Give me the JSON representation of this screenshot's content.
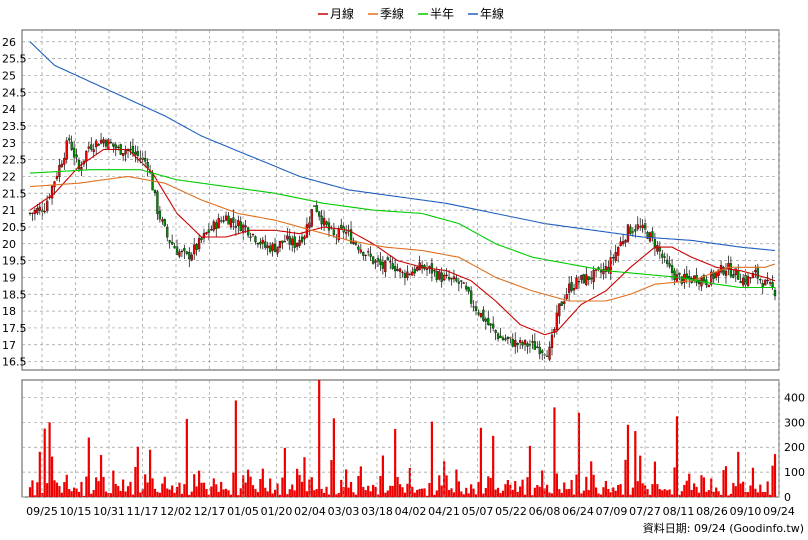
{
  "chart_data": [
    {
      "type": "candlestick",
      "legend": [
        {
          "name": "月線",
          "color": "#cc0000"
        },
        {
          "name": "季線",
          "color": "#e07020"
        },
        {
          "name": "半年",
          "color": "#00cc00"
        },
        {
          "name": "年線",
          "color": "#1f5fbf"
        }
      ],
      "legend_placement": "top-center",
      "y_ticks": [
        "26",
        "25.5",
        "25",
        "24.5",
        "24",
        "23.5",
        "23",
        "22.5",
        "22",
        "21.5",
        "21",
        "20.5",
        "20",
        "19.5",
        "19",
        "18.5",
        "18",
        "17.5",
        "17",
        "16.5"
      ],
      "y_tick_values": [
        26,
        25.5,
        25,
        24.5,
        24,
        23.5,
        23,
        22.5,
        22,
        21.5,
        21,
        20.5,
        20,
        19.5,
        19,
        18.5,
        18,
        17.5,
        17,
        16.5
      ],
      "ylim": [
        16.25,
        26.35
      ],
      "grid": true,
      "x_ticks": [
        "09/25",
        "10/15",
        "10/31",
        "11/17",
        "12/02",
        "12/17",
        "01/05",
        "01/20",
        "02/04",
        "03/03",
        "03/18",
        "04/02",
        "04/21",
        "05/07",
        "05/22",
        "06/08",
        "06/24",
        "07/09",
        "07/27",
        "08/11",
        "08/26",
        "09/10",
        "09/24"
      ],
      "price_path": [
        [
          0,
          20.9
        ],
        [
          6,
          21.1
        ],
        [
          12,
          22.3
        ],
        [
          16,
          23.1
        ],
        [
          20,
          22.2
        ],
        [
          24,
          22.9
        ],
        [
          30,
          23.1
        ],
        [
          36,
          22.8
        ],
        [
          40,
          22.8
        ],
        [
          44,
          22.6
        ],
        [
          48,
          22.4
        ],
        [
          52,
          21.0
        ],
        [
          56,
          20.2
        ],
        [
          60,
          19.8
        ],
        [
          64,
          19.6
        ],
        [
          68,
          19.9
        ],
        [
          72,
          20.3
        ],
        [
          76,
          20.6
        ],
        [
          80,
          20.8
        ],
        [
          84,
          20.6
        ],
        [
          88,
          20.5
        ],
        [
          92,
          20.2
        ],
        [
          96,
          19.9
        ],
        [
          100,
          19.9
        ],
        [
          104,
          20.1
        ],
        [
          108,
          20.0
        ],
        [
          112,
          20.3
        ],
        [
          116,
          21.2
        ],
        [
          120,
          20.6
        ],
        [
          124,
          20.2
        ],
        [
          128,
          20.4
        ],
        [
          132,
          20.1
        ],
        [
          136,
          19.8
        ],
        [
          140,
          19.5
        ],
        [
          144,
          19.3
        ],
        [
          148,
          19.4
        ],
        [
          152,
          19.1
        ],
        [
          156,
          19.2
        ],
        [
          160,
          19.3
        ],
        [
          164,
          19.2
        ],
        [
          168,
          19.0
        ],
        [
          172,
          18.9
        ],
        [
          176,
          18.8
        ],
        [
          180,
          18.3
        ],
        [
          184,
          17.9
        ],
        [
          188,
          17.5
        ],
        [
          192,
          17.2
        ],
        [
          196,
          17.1
        ],
        [
          200,
          17.0
        ],
        [
          204,
          17.0
        ],
        [
          208,
          16.9
        ],
        [
          212,
          16.8
        ],
        [
          216,
          18.1
        ],
        [
          220,
          18.7
        ],
        [
          224,
          18.9
        ],
        [
          228,
          19.0
        ],
        [
          232,
          19.1
        ],
        [
          236,
          19.3
        ],
        [
          240,
          19.9
        ],
        [
          244,
          20.4
        ],
        [
          248,
          20.5
        ],
        [
          252,
          20.3
        ],
        [
          256,
          19.9
        ],
        [
          260,
          19.3
        ],
        [
          264,
          19.0
        ],
        [
          268,
          18.9
        ],
        [
          272,
          19.0
        ],
        [
          276,
          18.9
        ],
        [
          280,
          19.1
        ],
        [
          284,
          19.3
        ],
        [
          288,
          19.1
        ],
        [
          292,
          18.9
        ],
        [
          296,
          19.1
        ],
        [
          300,
          18.8
        ],
        [
          304,
          18.6
        ]
      ],
      "ma": [
        {
          "name": "月線",
          "points": [
            [
              0,
              21.0
            ],
            [
              10,
              21.5
            ],
            [
              20,
              22.3
            ],
            [
              30,
              22.8
            ],
            [
              40,
              22.8
            ],
            [
              50,
              22.1
            ],
            [
              60,
              20.9
            ],
            [
              70,
              20.2
            ],
            [
              80,
              20.2
            ],
            [
              90,
              20.4
            ],
            [
              100,
              20.4
            ],
            [
              110,
              20.3
            ],
            [
              120,
              20.5
            ],
            [
              130,
              20.4
            ],
            [
              140,
              20.0
            ],
            [
              150,
              19.5
            ],
            [
              160,
              19.3
            ],
            [
              170,
              19.2
            ],
            [
              180,
              18.9
            ],
            [
              190,
              18.3
            ],
            [
              200,
              17.6
            ],
            [
              210,
              17.3
            ],
            [
              215,
              17.4
            ],
            [
              225,
              18.2
            ],
            [
              235,
              18.6
            ],
            [
              245,
              19.3
            ],
            [
              255,
              19.9
            ],
            [
              262,
              19.9
            ],
            [
              270,
              19.6
            ],
            [
              280,
              19.3
            ],
            [
              290,
              19.2
            ],
            [
              300,
              19.0
            ],
            [
              304,
              18.9
            ]
          ]
        },
        {
          "name": "季線",
          "points": [
            [
              0,
              21.7
            ],
            [
              20,
              21.8
            ],
            [
              40,
              22.0
            ],
            [
              55,
              21.8
            ],
            [
              70,
              21.3
            ],
            [
              85,
              20.9
            ],
            [
              100,
              20.7
            ],
            [
              115,
              20.4
            ],
            [
              130,
              20.1
            ],
            [
              145,
              19.9
            ],
            [
              160,
              19.8
            ],
            [
              175,
              19.6
            ],
            [
              190,
              19.0
            ],
            [
              205,
              18.6
            ],
            [
              220,
              18.3
            ],
            [
              235,
              18.3
            ],
            [
              245,
              18.5
            ],
            [
              255,
              18.8
            ],
            [
              270,
              18.9
            ],
            [
              285,
              19.3
            ],
            [
              300,
              19.3
            ],
            [
              304,
              19.4
            ]
          ]
        },
        {
          "name": "半年",
          "points": [
            [
              0,
              22.1
            ],
            [
              25,
              22.2
            ],
            [
              45,
              22.2
            ],
            [
              60,
              21.9
            ],
            [
              80,
              21.7
            ],
            [
              100,
              21.5
            ],
            [
              120,
              21.2
            ],
            [
              140,
              21.0
            ],
            [
              160,
              20.9
            ],
            [
              175,
              20.6
            ],
            [
              190,
              20.0
            ],
            [
              205,
              19.6
            ],
            [
              220,
              19.4
            ],
            [
              235,
              19.2
            ],
            [
              250,
              19.1
            ],
            [
              265,
              19.0
            ],
            [
              280,
              18.8
            ],
            [
              290,
              18.7
            ],
            [
              304,
              18.7
            ]
          ]
        },
        {
          "name": "年線",
          "points": [
            [
              0,
              26.0
            ],
            [
              10,
              25.3
            ],
            [
              25,
              24.8
            ],
            [
              40,
              24.3
            ],
            [
              55,
              23.8
            ],
            [
              70,
              23.2
            ],
            [
              90,
              22.6
            ],
            [
              110,
              22.0
            ],
            [
              130,
              21.6
            ],
            [
              150,
              21.4
            ],
            [
              170,
              21.2
            ],
            [
              190,
              20.9
            ],
            [
              210,
              20.6
            ],
            [
              230,
              20.4
            ],
            [
              250,
              20.2
            ],
            [
              270,
              20.1
            ],
            [
              290,
              19.9
            ],
            [
              304,
              19.8
            ]
          ]
        }
      ],
      "sample_volumes": [
        40,
        55,
        10,
        120,
        300,
        15,
        30,
        80,
        60,
        230,
        70,
        50,
        35,
        20,
        90,
        110,
        40,
        25,
        60,
        30
      ]
    },
    {
      "type": "bar",
      "y_ticks": [
        "400",
        "300",
        "200",
        "100",
        "0"
      ],
      "y_tick_values": [
        400,
        300,
        200,
        100,
        0
      ],
      "ylim": [
        0,
        470
      ],
      "color": "#ee0000",
      "grid": true
    }
  ],
  "footer": {
    "source_label": "資料日期: 09/24  (Goodinfo.tw)"
  }
}
